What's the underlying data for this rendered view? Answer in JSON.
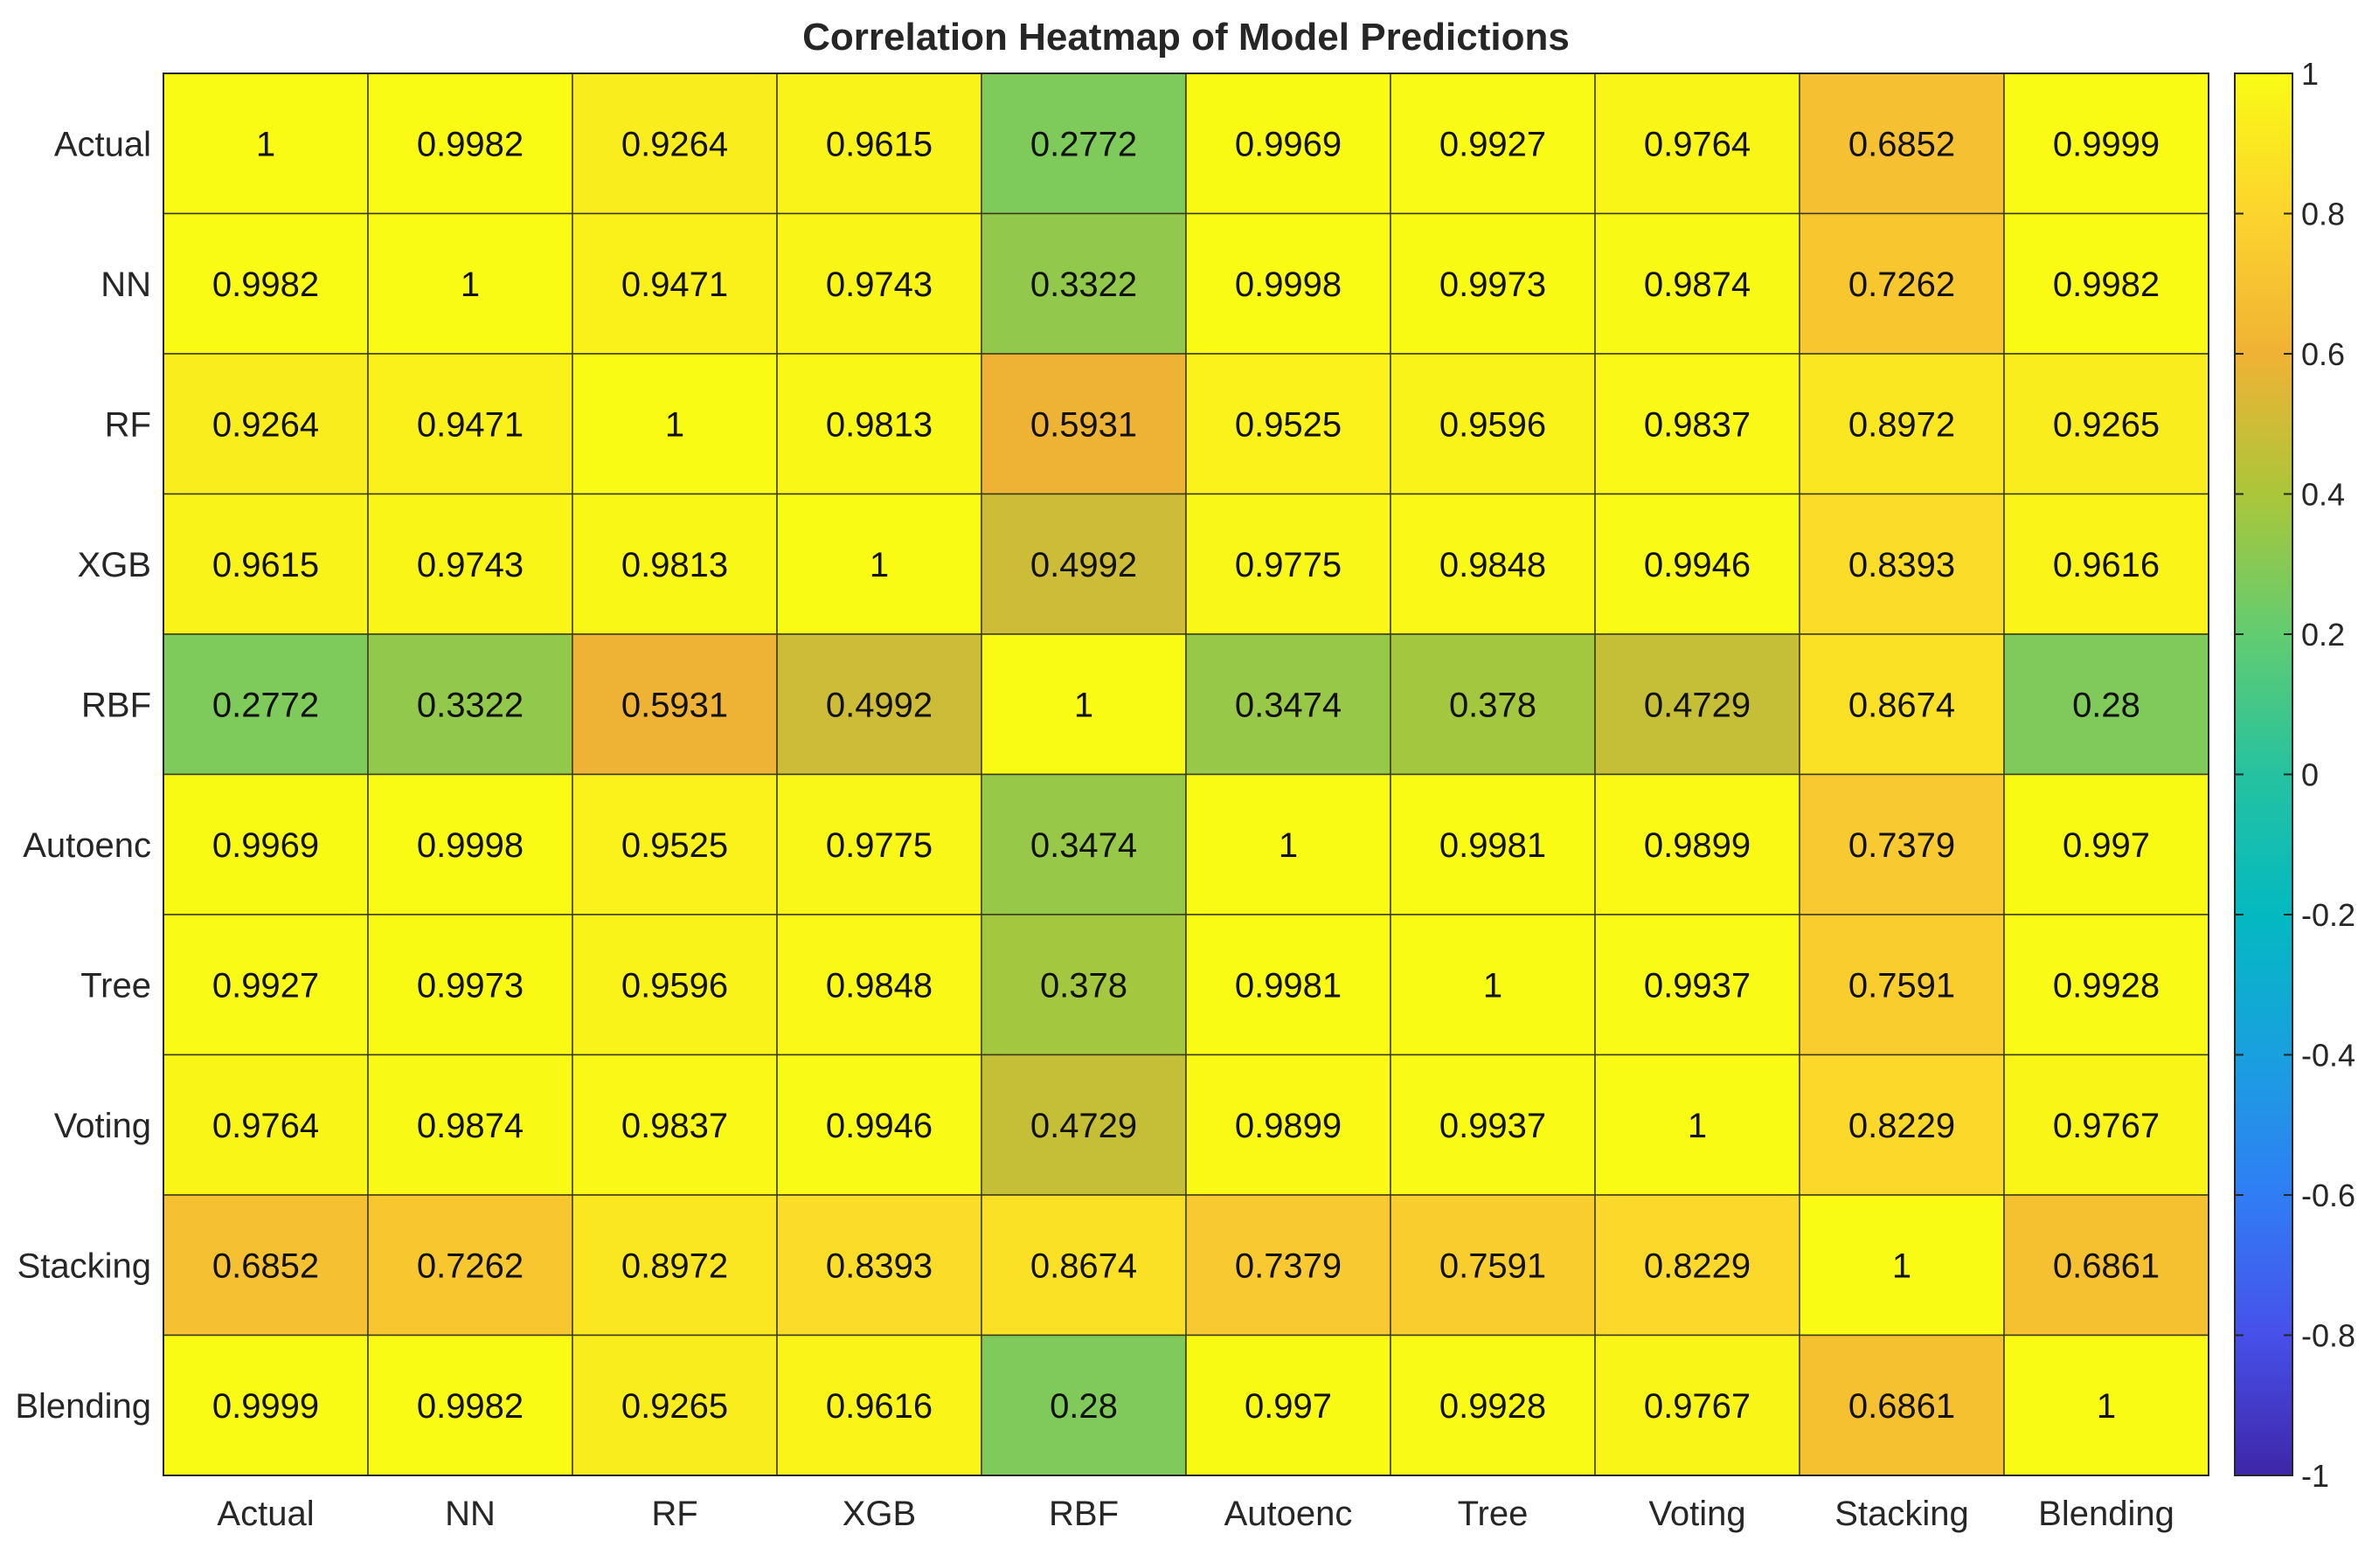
{
  "chart_data": {
    "type": "heatmap",
    "title": "Correlation Heatmap of Model Predictions",
    "xlabel": "",
    "ylabel": "",
    "x_categories": [
      "Actual",
      "NN",
      "RF",
      "XGB",
      "RBF",
      "Autoenc",
      "Tree",
      "Voting",
      "Stacking",
      "Blending"
    ],
    "y_categories": [
      "Actual",
      "NN",
      "RF",
      "XGB",
      "RBF",
      "Autoenc",
      "Tree",
      "Voting",
      "Stacking",
      "Blending"
    ],
    "values": [
      [
        "1",
        "0.9982",
        "0.9264",
        "0.9615",
        "0.2772",
        "0.9969",
        "0.9927",
        "0.9764",
        "0.6852",
        "0.9999"
      ],
      [
        "0.9982",
        "1",
        "0.9471",
        "0.9743",
        "0.3322",
        "0.9998",
        "0.9973",
        "0.9874",
        "0.7262",
        "0.9982"
      ],
      [
        "0.9264",
        "0.9471",
        "1",
        "0.9813",
        "0.5931",
        "0.9525",
        "0.9596",
        "0.9837",
        "0.8972",
        "0.9265"
      ],
      [
        "0.9615",
        "0.9743",
        "0.9813",
        "1",
        "0.4992",
        "0.9775",
        "0.9848",
        "0.9946",
        "0.8393",
        "0.9616"
      ],
      [
        "0.2772",
        "0.3322",
        "0.5931",
        "0.4992",
        "1",
        "0.3474",
        "0.378",
        "0.4729",
        "0.8674",
        "0.28"
      ],
      [
        "0.9969",
        "0.9998",
        "0.9525",
        "0.9775",
        "0.3474",
        "1",
        "0.9981",
        "0.9899",
        "0.7379",
        "0.997"
      ],
      [
        "0.9927",
        "0.9973",
        "0.9596",
        "0.9848",
        "0.378",
        "0.9981",
        "1",
        "0.9937",
        "0.7591",
        "0.9928"
      ],
      [
        "0.9764",
        "0.9874",
        "0.9837",
        "0.9946",
        "0.4729",
        "0.9899",
        "0.9937",
        "1",
        "0.8229",
        "0.9767"
      ],
      [
        "0.6852",
        "0.7262",
        "0.8972",
        "0.8393",
        "0.8674",
        "0.7379",
        "0.7591",
        "0.8229",
        "1",
        "0.6861"
      ],
      [
        "0.9999",
        "0.9982",
        "0.9265",
        "0.9616",
        "0.28",
        "0.997",
        "0.9928",
        "0.9767",
        "0.6861",
        "1"
      ]
    ],
    "colorbar": {
      "range": [
        -1,
        1
      ],
      "ticks": [
        "1",
        "0.8",
        "0.6",
        "0.4",
        "0.2",
        "0",
        "-0.2",
        "-0.4",
        "-0.6",
        "-0.8",
        "-1"
      ],
      "colormap": "parula"
    },
    "grid": true
  }
}
